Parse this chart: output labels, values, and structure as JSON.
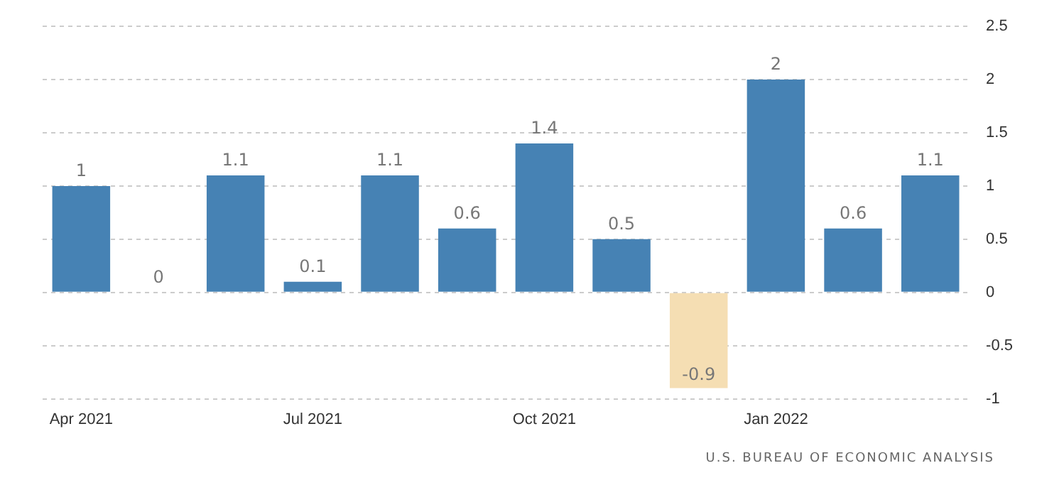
{
  "chart_data": {
    "type": "bar",
    "categories": [
      "Apr 2021",
      null,
      null,
      "Jul 2021",
      null,
      null,
      "Oct 2021",
      null,
      null,
      "Jan 2022",
      null,
      null
    ],
    "values": [
      1,
      0,
      1.1,
      0.1,
      1.1,
      0.6,
      1.4,
      0.5,
      -0.9,
      2,
      0.6,
      1.1
    ],
    "colors": [
      "#4682b4",
      "#4682b4",
      "#4682b4",
      "#4682b4",
      "#4682b4",
      "#4682b4",
      "#4682b4",
      "#4682b4",
      "#f5deb3",
      "#4682b4",
      "#4682b4",
      "#4682b4"
    ],
    "ylim": [
      -1,
      2.5
    ],
    "yticks": [
      -1,
      -0.5,
      0,
      0.5,
      1,
      1.5,
      2,
      2.5
    ],
    "grid": "y",
    "data_labels": true,
    "annotations": [
      "U.S. BUREAU OF ECONOMIC ANALYSIS"
    ]
  }
}
